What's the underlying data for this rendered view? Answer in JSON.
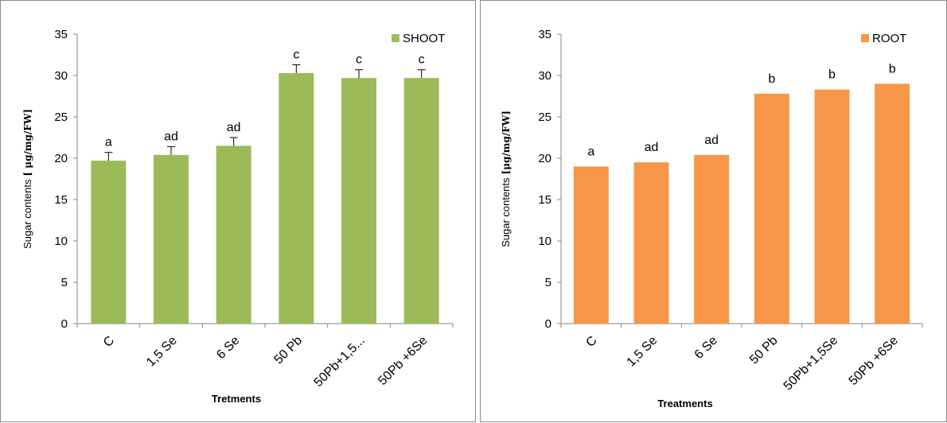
{
  "chart_data": [
    {
      "type": "bar",
      "ylabel": "Sugar contents",
      "ylabel_unit": "[ μg/mg/FW]",
      "xlabel": "Tretments",
      "categories": [
        "C",
        "1,5 Se",
        "6 Se",
        "50 Pb",
        "50Pb+1,5...",
        "50Pb +6Se"
      ],
      "series": [
        {
          "name": "SHOOT",
          "values": [
            19.7,
            20.4,
            21.5,
            30.3,
            29.7,
            29.7
          ],
          "errors": [
            1.0,
            1.0,
            1.0,
            1.0,
            1.0,
            1.0
          ],
          "labels": [
            "a",
            "ad",
            "ad",
            "c",
            "c",
            "c"
          ],
          "color": "#9bbb59"
        }
      ],
      "ylim": [
        0,
        35
      ],
      "yticks": [
        0,
        5,
        10,
        15,
        20,
        25,
        30,
        35
      ],
      "grid": false,
      "legend": "top-right"
    },
    {
      "type": "bar",
      "ylabel": "Sugar contents",
      "ylabel_unit": "[μg/mg/FW]",
      "xlabel": "Treatments",
      "categories": [
        "C",
        "1,5 Se",
        "6 Se",
        "50 Pb",
        "50Pb+1,5Se",
        "50Pb +6Se"
      ],
      "series": [
        {
          "name": "ROOT",
          "values": [
            19.0,
            19.5,
            20.4,
            27.8,
            28.3,
            29.0
          ],
          "labels": [
            "a",
            "ad",
            "ad",
            "b",
            "b",
            "b"
          ],
          "color": "#f79646"
        }
      ],
      "ylim": [
        0,
        35
      ],
      "yticks": [
        0,
        5,
        10,
        15,
        20,
        25,
        30,
        35
      ],
      "grid": false,
      "legend": "top-right"
    }
  ]
}
